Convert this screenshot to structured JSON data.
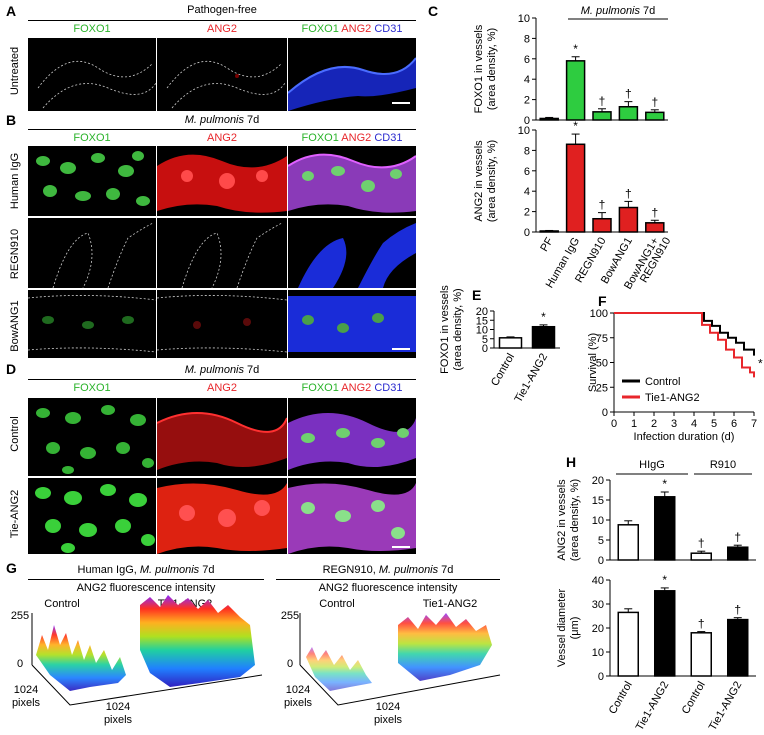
{
  "panelA": {
    "letter": "A",
    "title": "Pathogen-free",
    "row": "Untreated",
    "ch1": "FOXO1",
    "ch2": "ANG2",
    "ch3a": "FOXO1",
    "ch3b": "ANG2",
    "ch3c": "CD31"
  },
  "panelB": {
    "letter": "B",
    "title_species": "M. pulmonis",
    "title_day": " 7d",
    "rows": [
      "Human IgG",
      "REGN910",
      "BowANG1"
    ],
    "ch1": "FOXO1",
    "ch2": "ANG2",
    "ch3a": "FOXO1",
    "ch3b": "ANG2",
    "ch3c": "CD31"
  },
  "panelD": {
    "letter": "D",
    "title_species": "M. pulmonis",
    "title_day": " 7d",
    "rows": [
      "Control",
      "Tie-ANG2"
    ],
    "ch1": "FOXO1",
    "ch2": "ANG2",
    "ch3a": "FOXO1",
    "ch3b": "ANG2",
    "ch3c": "CD31"
  },
  "panelG": {
    "letter": "G",
    "left_title_a": "Human IgG, ",
    "left_title_b": "M. pulmonis",
    "left_title_c": " 7d",
    "right_title_a": "REGN910, ",
    "right_title_b": "M. pulmonis",
    "right_title_c": " 7d",
    "subtitle": "ANG2 fluorescence intensity",
    "col1": "Control",
    "col2": "Tie1-ANG2",
    "z_max": "255",
    "z_min": "0",
    "dim": "1024",
    "dim_unit": "pixels"
  },
  "panelC": {
    "letter": "C",
    "header_species": "M. pulmonis",
    "header_day": " 7d"
  },
  "panelE": {
    "letter": "E"
  },
  "panelF": {
    "letter": "F"
  },
  "panelH": {
    "letter": "H",
    "group1": "HIgG",
    "group2": "R910"
  },
  "colors": {
    "green": "#2ecc40",
    "red": "#e02020",
    "black": "#000000",
    "redline": "#e8262b"
  },
  "chart_data": [
    {
      "id": "C-top",
      "type": "bar",
      "ylabel": "FOXO1 in vessels",
      "ylabel2": "(area density, %)",
      "ylim": [
        0,
        10
      ],
      "yticks": [
        "0",
        "2",
        "4",
        "6",
        "8",
        "10"
      ],
      "categories": [
        "PF",
        "Human IgG",
        "REGN910",
        "BowANG1",
        "BowANG1+ REGN910"
      ],
      "values": [
        0.15,
        5.8,
        0.8,
        1.3,
        0.75
      ],
      "errors": [
        0.1,
        0.4,
        0.3,
        0.5,
        0.25
      ],
      "marks": [
        "",
        "*",
        "†",
        "†",
        "†"
      ]
    },
    {
      "id": "C-bottom",
      "type": "bar",
      "ylabel": "ANG2 in vessels",
      "ylabel2": "(area density, %)",
      "ylim": [
        0,
        10
      ],
      "yticks": [
        "0",
        "2",
        "4",
        "6",
        "8",
        "10"
      ],
      "categories": [
        "PF",
        "Human IgG",
        "REGN910",
        "BowANG1",
        "BowANG1+ REGN910"
      ],
      "xlabels": [
        "PF",
        "Human IgG",
        "REGN910",
        "BowANG1",
        "BowANG1+",
        "REGN910"
      ],
      "values": [
        0.1,
        8.6,
        1.3,
        2.4,
        0.9
      ],
      "errors": [
        0.05,
        1.0,
        0.6,
        0.6,
        0.25
      ],
      "marks": [
        "",
        "*",
        "†",
        "†",
        "†"
      ]
    },
    {
      "id": "E",
      "type": "bar",
      "ylabel": "FOXO1 in vessels",
      "ylabel2": "(area density, %)",
      "ylim": [
        0,
        20
      ],
      "yticks": [
        "0",
        "5",
        "10",
        "15",
        "20"
      ],
      "categories": [
        "Control",
        "Tie1-ANG2"
      ],
      "values": [
        5.5,
        11.5
      ],
      "errors": [
        0.5,
        1.0
      ],
      "marks": [
        "",
        "*"
      ]
    },
    {
      "id": "F",
      "type": "line",
      "ylabel": "Survival (%)",
      "xlabel": "Infection duration (d)",
      "xlim": [
        0,
        7
      ],
      "ylim": [
        0,
        100
      ],
      "xticks": [
        "0",
        "1",
        "2",
        "3",
        "4",
        "5",
        "6",
        "7"
      ],
      "yticks": [
        "0",
        "25",
        "50",
        "75",
        "100"
      ],
      "series": [
        {
          "name": "Control",
          "x": [
            0,
            4.2,
            4.5,
            4.9,
            5.3,
            5.7,
            6.1,
            6.5,
            7
          ],
          "y": [
            100,
            100,
            92,
            87,
            80,
            75,
            70,
            63,
            57
          ]
        },
        {
          "name": "Tie1-ANG2",
          "x": [
            0,
            4.2,
            4.4,
            4.8,
            5.2,
            5.6,
            6.0,
            6.4,
            6.8,
            7
          ],
          "y": [
            100,
            100,
            88,
            80,
            73,
            63,
            55,
            45,
            40,
            35
          ]
        }
      ],
      "mark": "*"
    },
    {
      "id": "H-top",
      "type": "bar",
      "ylabel": "ANG2 in vessels",
      "ylabel2": "(area density, %)",
      "ylim": [
        0,
        20
      ],
      "yticks": [
        "0",
        "5",
        "10",
        "15",
        "20"
      ],
      "categories": [
        "Control",
        "Tie1-ANG2",
        "Control",
        "Tie1-ANG2"
      ],
      "values": [
        8.8,
        15.8,
        1.7,
        3.2
      ],
      "errors": [
        1.0,
        1.2,
        0.5,
        0.5
      ],
      "marks": [
        "",
        "*",
        "†",
        "†"
      ]
    },
    {
      "id": "H-bottom",
      "type": "bar",
      "ylabel": "Vessel diameter",
      "ylabel2": "(μm)",
      "ylim": [
        0,
        40
      ],
      "yticks": [
        "0",
        "10",
        "20",
        "30",
        "40"
      ],
      "categories": [
        "Control",
        "Tie1-ANG2",
        "Control",
        "Tie1-ANG2"
      ],
      "values": [
        26.5,
        35.5,
        18,
        23.5
      ],
      "errors": [
        1.5,
        1.2,
        0.5,
        0.8
      ],
      "marks": [
        "",
        "*",
        "†",
        "†"
      ]
    }
  ]
}
